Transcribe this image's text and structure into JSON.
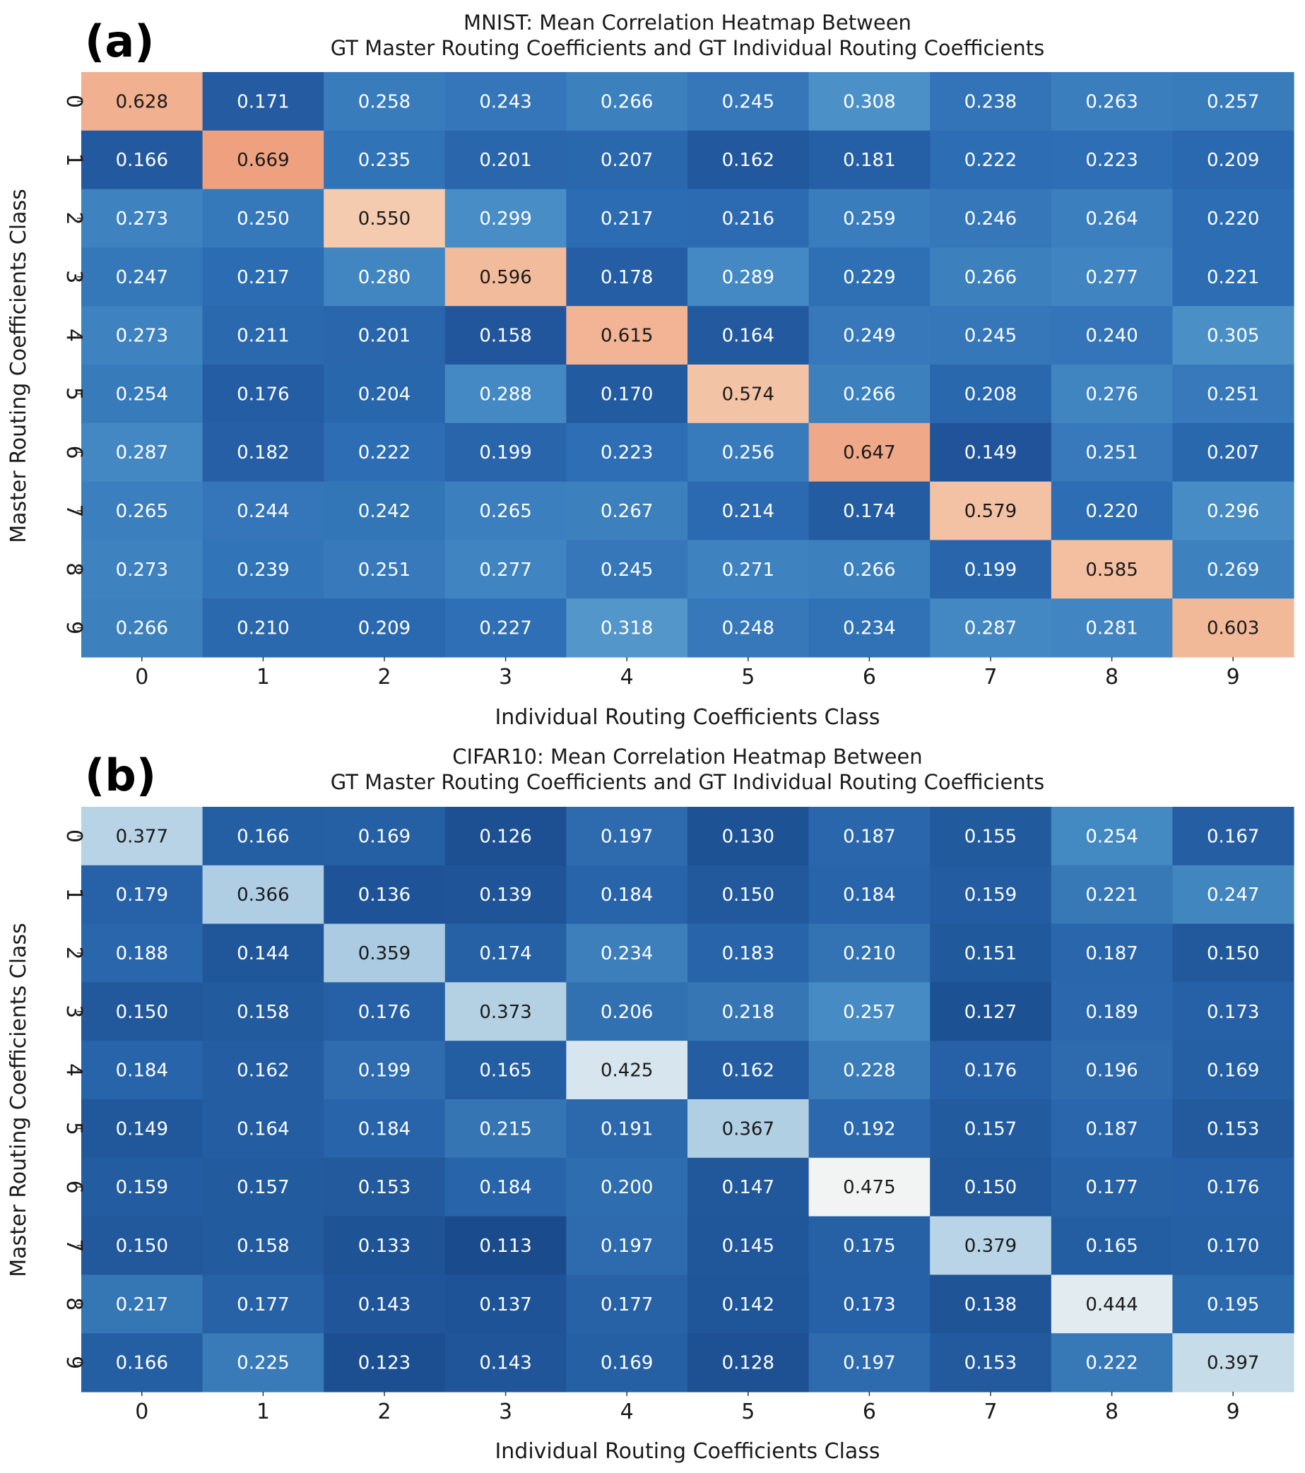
{
  "chart_data": [
    {
      "type": "heatmap",
      "panel_label": "(a)",
      "title_line1": "MNIST: Mean Correlation Heatmap Between",
      "title_line2": "GT Master Routing Coefficients and GT Individual Routing Coefficients",
      "xlabel": "Individual Routing Coefficients Class",
      "ylabel": "Master Routing Coefficients Class",
      "x_categories": [
        "0",
        "1",
        "2",
        "3",
        "4",
        "5",
        "6",
        "7",
        "8",
        "9"
      ],
      "y_categories": [
        "0",
        "1",
        "2",
        "3",
        "4",
        "5",
        "6",
        "7",
        "8",
        "9"
      ],
      "values": [
        [
          "0.628",
          "0.171",
          "0.258",
          "0.243",
          "0.266",
          "0.245",
          "0.308",
          "0.238",
          "0.263",
          "0.257"
        ],
        [
          "0.166",
          "0.669",
          "0.235",
          "0.201",
          "0.207",
          "0.162",
          "0.181",
          "0.222",
          "0.223",
          "0.209"
        ],
        [
          "0.273",
          "0.250",
          "0.550",
          "0.299",
          "0.217",
          "0.216",
          "0.259",
          "0.246",
          "0.264",
          "0.220"
        ],
        [
          "0.247",
          "0.217",
          "0.280",
          "0.596",
          "0.178",
          "0.289",
          "0.229",
          "0.266",
          "0.277",
          "0.221"
        ],
        [
          "0.273",
          "0.211",
          "0.201",
          "0.158",
          "0.615",
          "0.164",
          "0.249",
          "0.245",
          "0.240",
          "0.305"
        ],
        [
          "0.254",
          "0.176",
          "0.204",
          "0.288",
          "0.170",
          "0.574",
          "0.266",
          "0.208",
          "0.276",
          "0.251"
        ],
        [
          "0.287",
          "0.182",
          "0.222",
          "0.199",
          "0.223",
          "0.256",
          "0.647",
          "0.149",
          "0.251",
          "0.207"
        ],
        [
          "0.265",
          "0.244",
          "0.242",
          "0.265",
          "0.267",
          "0.214",
          "0.174",
          "0.579",
          "0.220",
          "0.296"
        ],
        [
          "0.273",
          "0.239",
          "0.251",
          "0.277",
          "0.245",
          "0.271",
          "0.266",
          "0.199",
          "0.585",
          "0.269"
        ],
        [
          "0.266",
          "0.210",
          "0.209",
          "0.227",
          "0.318",
          "0.248",
          "0.234",
          "0.287",
          "0.281",
          "0.603"
        ]
      ],
      "colormap": "coolwarm-like (blue low, light mid, orange high)",
      "value_range": [
        0.14,
        0.7
      ]
    },
    {
      "type": "heatmap",
      "panel_label": "(b)",
      "title_line1": "CIFAR10: Mean Correlation Heatmap Between",
      "title_line2": "GT Master Routing Coefficients and GT Individual Routing Coefficients",
      "xlabel": "Individual Routing Coefficients Class",
      "ylabel": "Master Routing Coefficients Class",
      "x_categories": [
        "0",
        "1",
        "2",
        "3",
        "4",
        "5",
        "6",
        "7",
        "8",
        "9"
      ],
      "y_categories": [
        "0",
        "1",
        "2",
        "3",
        "4",
        "5",
        "6",
        "7",
        "8",
        "9"
      ],
      "values": [
        [
          "0.377",
          "0.166",
          "0.169",
          "0.126",
          "0.197",
          "0.130",
          "0.187",
          "0.155",
          "0.254",
          "0.167"
        ],
        [
          "0.179",
          "0.366",
          "0.136",
          "0.139",
          "0.184",
          "0.150",
          "0.184",
          "0.159",
          "0.221",
          "0.247"
        ],
        [
          "0.188",
          "0.144",
          "0.359",
          "0.174",
          "0.234",
          "0.183",
          "0.210",
          "0.151",
          "0.187",
          "0.150"
        ],
        [
          "0.150",
          "0.158",
          "0.176",
          "0.373",
          "0.206",
          "0.218",
          "0.257",
          "0.127",
          "0.189",
          "0.173"
        ],
        [
          "0.184",
          "0.162",
          "0.199",
          "0.165",
          "0.425",
          "0.162",
          "0.228",
          "0.176",
          "0.196",
          "0.169"
        ],
        [
          "0.149",
          "0.164",
          "0.184",
          "0.215",
          "0.191",
          "0.367",
          "0.192",
          "0.157",
          "0.187",
          "0.153"
        ],
        [
          "0.159",
          "0.157",
          "0.153",
          "0.184",
          "0.200",
          "0.147",
          "0.475",
          "0.150",
          "0.177",
          "0.176"
        ],
        [
          "0.150",
          "0.158",
          "0.133",
          "0.113",
          "0.197",
          "0.145",
          "0.175",
          "0.379",
          "0.165",
          "0.170"
        ],
        [
          "0.217",
          "0.177",
          "0.143",
          "0.137",
          "0.177",
          "0.142",
          "0.173",
          "0.138",
          "0.444",
          "0.195"
        ],
        [
          "0.166",
          "0.225",
          "0.123",
          "0.143",
          "0.169",
          "0.128",
          "0.197",
          "0.153",
          "0.222",
          "0.397"
        ]
      ],
      "colormap": "blue to light (low to high)",
      "value_range": [
        0.11,
        0.48
      ]
    }
  ]
}
